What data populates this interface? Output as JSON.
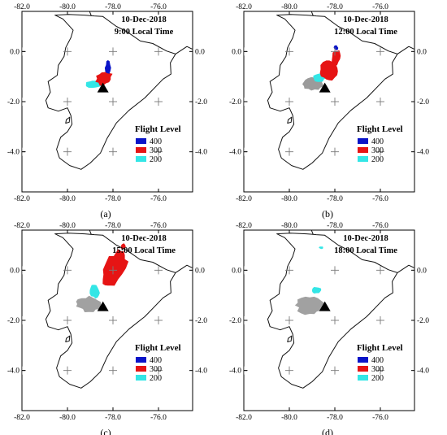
{
  "figure": {
    "map_extent": {
      "lon": [
        -82.0,
        -74.5
      ],
      "lat": [
        -5.6,
        1.6
      ]
    },
    "x_ticks": [
      -82.0,
      -80.0,
      -78.0,
      -76.0
    ],
    "y_ticks": [
      0.0,
      -2.0,
      -4.0
    ],
    "x_tick_labels": [
      "-82.0",
      "-80.0",
      "-78.0",
      "-76.0"
    ],
    "y_tick_labels": [
      "0.0",
      "-2.0",
      "-4.0"
    ],
    "volcano": {
      "lon": -78.44,
      "lat": -1.47,
      "marker": "black-triangle"
    },
    "legend": {
      "heading": "Flight Level",
      "items": [
        {
          "label": "400",
          "color": "#0a14c8"
        },
        {
          "label": "300",
          "color": "#e61414"
        },
        {
          "label": "200",
          "color": "#33e6e6"
        }
      ]
    },
    "ash_colors": {
      "400": "#0a14c8",
      "300": "#e61414",
      "200": "#33e6e6",
      "surface": "#8a8a8a"
    },
    "panels": [
      {
        "date": "10-Dec-2018",
        "time": "9:00 Local Time",
        "caption": "(a)"
      },
      {
        "date": "10-Dec-2018",
        "time": "12:00 Local Time",
        "caption": "(b)"
      },
      {
        "date": "10-Dec-2018",
        "time": "15:00 Local Time",
        "caption": "(c)"
      },
      {
        "date": "10-Dec-2018",
        "time": "18:00 Local Time",
        "caption": "(d)"
      }
    ]
  }
}
